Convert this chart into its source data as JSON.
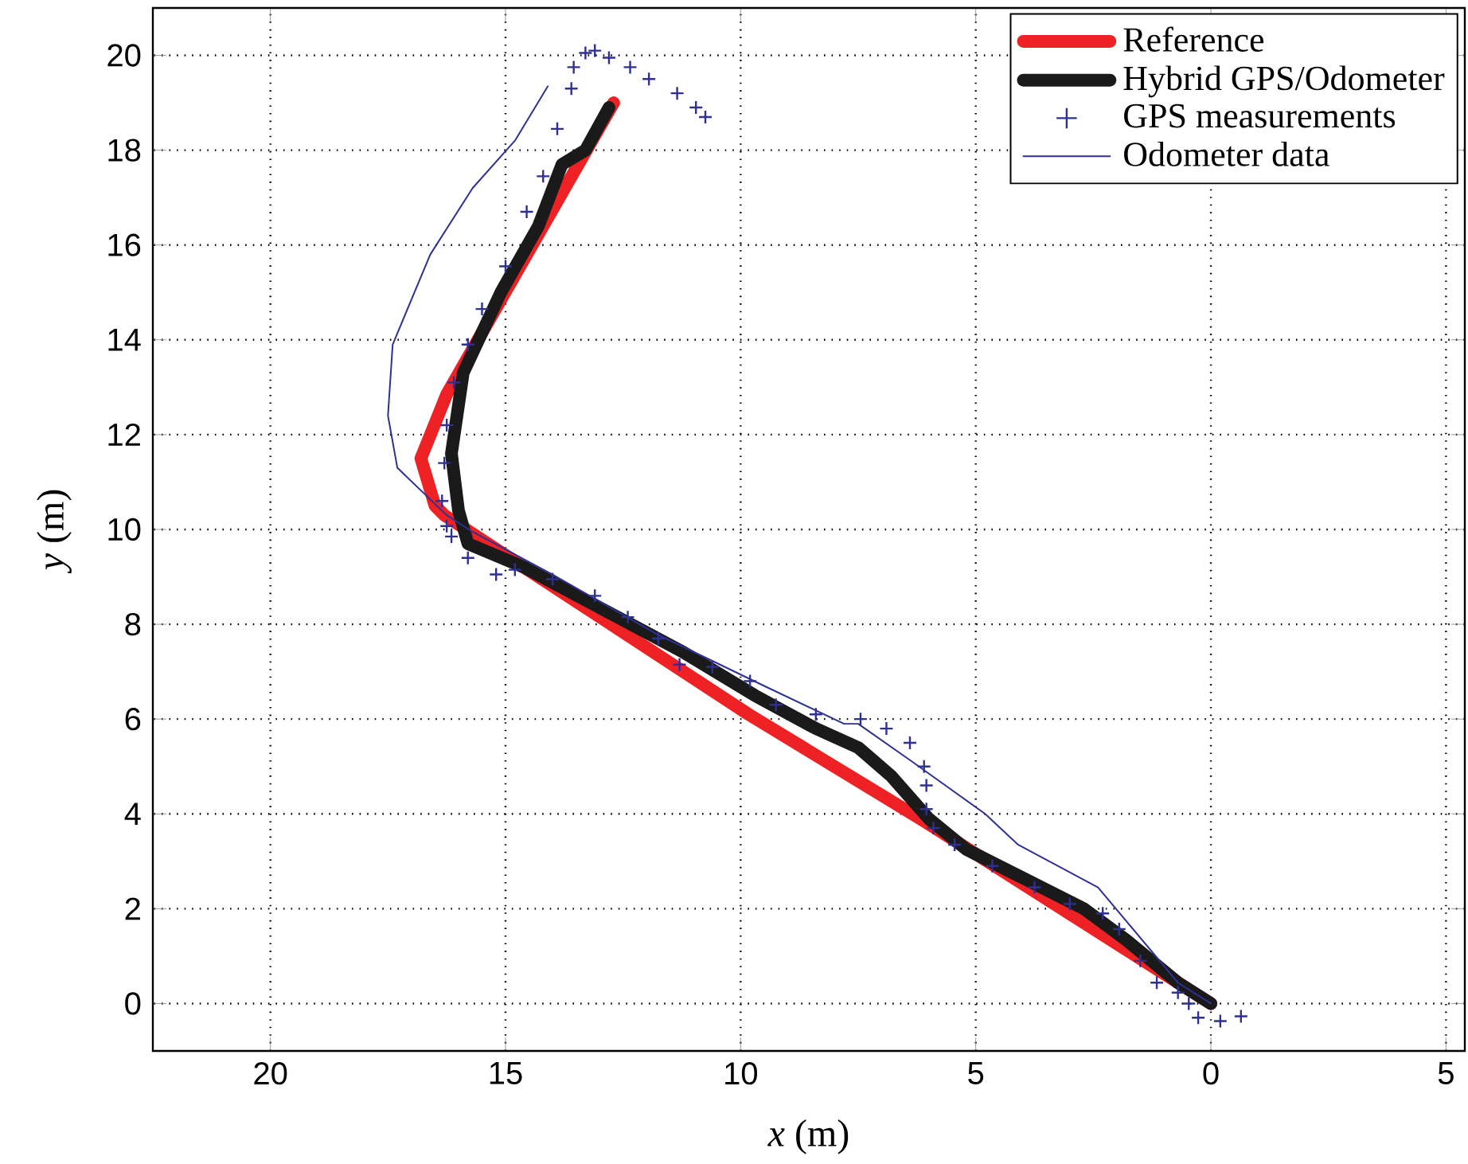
{
  "chart_data": {
    "type": "line",
    "xlabel": "*x* (m)",
    "ylabel": "*y* (m)",
    "xlim": [
      22.5,
      -5.4
    ],
    "ylim": [
      -1,
      21
    ],
    "xticks": [
      20,
      15,
      10,
      5,
      0,
      {
        "value": -5,
        "label": "5"
      }
    ],
    "yticks": [
      0,
      2,
      4,
      6,
      8,
      10,
      12,
      14,
      16,
      18,
      20
    ],
    "grid": true,
    "legend": "top right",
    "series": [
      {
        "name": "Reference",
        "color": "#ee2224",
        "x": [
          0,
          6.1,
          9.83,
          16.3,
          16.5,
          16.8,
          16.25,
          12.7
        ],
        "values": [
          0,
          3.85,
          6.1,
          10.3,
          10.5,
          11.5,
          12.85,
          19.0
        ]
      },
      {
        "name": "Hybrid GPS/Odometer",
        "color": "#1a1a1a",
        "x": [
          0,
          0.7,
          1.8,
          2.7,
          4.1,
          5.2,
          6.0,
          6.8,
          7.5,
          8.4,
          9.7,
          11.2,
          12.9,
          14.6,
          15.8,
          16.0,
          16.15,
          15.9,
          15.1,
          14.3,
          13.8,
          13.3,
          12.8
        ],
        "values": [
          0,
          0.44,
          1.34,
          2.0,
          2.7,
          3.25,
          3.9,
          4.8,
          5.4,
          5.8,
          6.5,
          7.4,
          8.3,
          9.2,
          9.7,
          10.4,
          11.6,
          13.3,
          15.0,
          16.4,
          17.7,
          18.0,
          18.9
        ]
      },
      {
        "name": "GPS measurements",
        "color": "#2e3192",
        "type": "scatter",
        "marker": "cross",
        "x": [
          -0.64,
          -0.2,
          0.27,
          0.47,
          0.7,
          1.15,
          1.5,
          1.95,
          2.3,
          3.0,
          3.75,
          4.65,
          5.45,
          5.9,
          6.05,
          6.05,
          6.1,
          6.4,
          6.9,
          7.45,
          8.4,
          9.25,
          9.8,
          10.6,
          11.3,
          11.75,
          12.4,
          13.1,
          14.0,
          14.8,
          15.2,
          15.8,
          16.15,
          16.25,
          16.35,
          16.3,
          16.25,
          16.1,
          15.8,
          15.5,
          15.0,
          14.55,
          14.2,
          13.9,
          13.6,
          13.55,
          13.3,
          13.1,
          12.8,
          12.35,
          11.95,
          11.35,
          10.95,
          10.75
        ],
        "values": [
          -0.27,
          -0.37,
          -0.3,
          0,
          0.23,
          0.44,
          0.9,
          1.57,
          1.9,
          2.1,
          2.45,
          2.9,
          3.35,
          3.7,
          4.1,
          4.6,
          5.0,
          5.5,
          5.8,
          6.0,
          6.1,
          6.3,
          6.8,
          7.1,
          7.15,
          7.7,
          8.15,
          8.6,
          8.95,
          9.15,
          9.05,
          9.4,
          9.85,
          10.07,
          10.6,
          11.4,
          12.2,
          13.1,
          13.9,
          14.65,
          15.55,
          16.7,
          17.45,
          18.45,
          19.3,
          19.75,
          20.05,
          20.1,
          19.95,
          19.75,
          19.5,
          19.2,
          18.9,
          18.7
        ]
      },
      {
        "name": "Odometer data",
        "color": "#2e3192",
        "x": [
          0,
          0.7,
          2.4,
          4.1,
          4.8,
          6.35,
          7.5,
          7.8,
          9.5,
          11.8,
          14.0,
          15.7,
          16.25,
          17.3,
          17.5,
          17.4,
          16.6,
          15.7,
          14.8,
          14.1
        ],
        "values": [
          0,
          0.44,
          2.45,
          3.35,
          4.0,
          5.1,
          5.9,
          5.9,
          6.7,
          7.8,
          9.05,
          9.95,
          10.3,
          11.3,
          12.4,
          13.9,
          15.8,
          17.2,
          18.2,
          19.35
        ]
      }
    ]
  }
}
